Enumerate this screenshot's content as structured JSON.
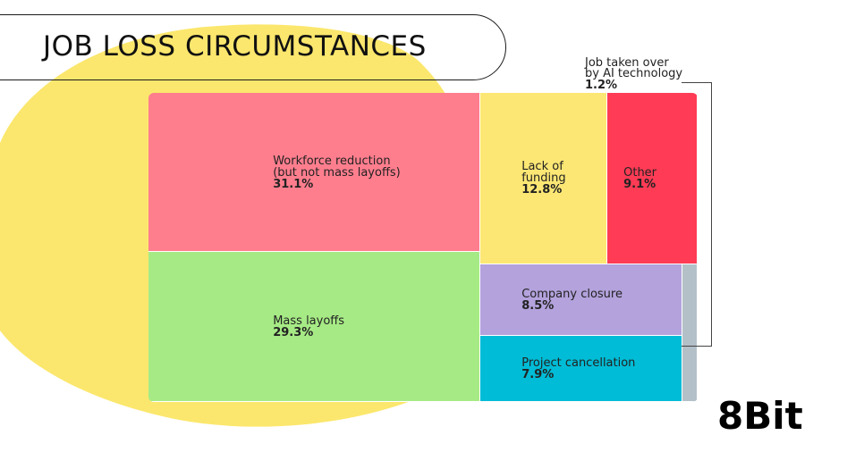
{
  "colors": {
    "background": "#ffffff",
    "blob": "#fbe76d"
  },
  "logo_text": "8Bit",
  "chart_data": {
    "type": "treemap",
    "title": "JOB LOSS CIRCUMSTANCES",
    "items": [
      {
        "label": "Workforce reduction\n(but not mass layoffs)",
        "value": 31.1,
        "value_label": "31.1%",
        "color": "#ff7e8e"
      },
      {
        "label": "Mass layoffs",
        "value": 29.3,
        "value_label": "29.3%",
        "color": "#a6ea85"
      },
      {
        "label": "Lack of\nfunding",
        "value": 12.8,
        "value_label": "12.8%",
        "color": "#fde774"
      },
      {
        "label": "Other",
        "value": 9.1,
        "value_label": "9.1%",
        "color": "#ff3b55"
      },
      {
        "label": "Company closure",
        "value": 8.5,
        "value_label": "8.5%",
        "color": "#b3a2dc"
      },
      {
        "label": "Project cancellation",
        "value": 7.9,
        "value_label": "7.9%",
        "color": "#00bcd6"
      },
      {
        "label": "Job taken over\nby AI technology",
        "value": 1.2,
        "value_label": "1.2%",
        "color": "#b4c0c8"
      }
    ]
  }
}
